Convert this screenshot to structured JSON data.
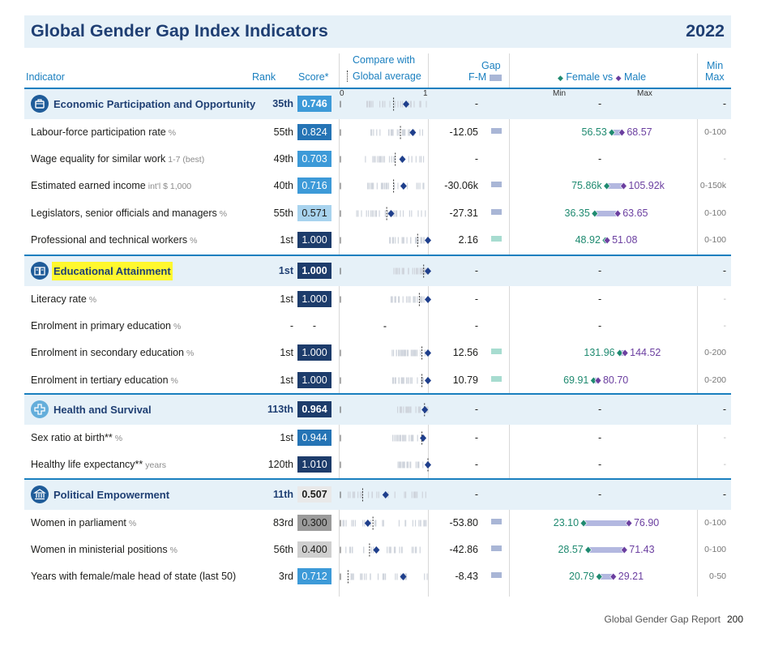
{
  "title": "Global Gender Gap Index Indicators",
  "year": "2022",
  "header": {
    "indicator": "Indicator",
    "rank": "Rank",
    "score": "Score*",
    "compare_line1": "Compare with",
    "compare_line2": "Global average",
    "gap_line1": "Gap",
    "gap_line2": "F-M",
    "female_vs_male_female": "Female",
    "female_vs_male_vs": "vs",
    "female_vs_male_male": "Male",
    "minmax_line1": "Min",
    "minmax_line2": "Max",
    "axis_0": "0",
    "axis_1": "1",
    "axis_min": "Min",
    "axis_max": "Max"
  },
  "colors": {
    "accent": "#1a7fbf",
    "title": "#1f3f73",
    "band": "#e6f1f8",
    "female": "#1f8a70",
    "male": "#6b3fa0",
    "highlight": "#fff82e"
  },
  "rows": [
    {
      "kind": "cat",
      "icon": "briefcase-icon",
      "label": "Economic Participation and Opportunity",
      "unit": "",
      "rank": "35th",
      "score": "0.746",
      "score_v": 0.746,
      "avg": 0.6,
      "gap": "-",
      "gap_bar": null,
      "female": "-",
      "male": "",
      "f_v": null,
      "m_v": null,
      "minmax": "-",
      "highlight": false
    },
    {
      "kind": "ind",
      "label": "Labour-force participation rate",
      "unit": "%",
      "rank": "55th",
      "score": "0.824",
      "score_v": 0.824,
      "avg": 0.68,
      "gap": "-12.05",
      "gap_bar": "neg",
      "female": "56.53",
      "male": "68.57",
      "f_v": 0.5653,
      "m_v": 0.6857,
      "minmax": "0-100"
    },
    {
      "kind": "ind",
      "label": "Wage equality for similar work",
      "unit": "1-7 (best)",
      "rank": "49th",
      "score": "0.703",
      "score_v": 0.703,
      "avg": 0.62,
      "gap": "-",
      "gap_bar": null,
      "female": "-",
      "male": "",
      "f_v": null,
      "m_v": null,
      "minmax": "-"
    },
    {
      "kind": "ind",
      "label": "Estimated earned income",
      "unit": "int'l $ 1,000",
      "rank": "40th",
      "score": "0.716",
      "score_v": 0.716,
      "avg": 0.6,
      "gap": "-30.06k",
      "gap_bar": "neg",
      "female": "75.86k",
      "male": "105.92k",
      "f_v": 0.5057,
      "m_v": 0.7061,
      "minmax": "0-150k"
    },
    {
      "kind": "ind",
      "label": "Legislators, senior officials and managers",
      "unit": "%",
      "rank": "55th",
      "score": "0.571",
      "score_v": 0.571,
      "avg": 0.52,
      "gap": "-27.31",
      "gap_bar": "neg",
      "female": "36.35",
      "male": "63.65",
      "f_v": 0.3635,
      "m_v": 0.6365,
      "minmax": "0-100"
    },
    {
      "kind": "ind",
      "label": "Professional and technical workers",
      "unit": "%",
      "rank": "1st",
      "score": "1.000",
      "score_v": 1.0,
      "avg": 0.88,
      "gap": "2.16",
      "gap_bar": "pos",
      "female": "48.92",
      "male": "51.08",
      "f_v": 0.4892,
      "m_v": 0.5108,
      "minmax": "0-100"
    },
    {
      "kind": "cat",
      "icon": "book-icon",
      "label": "Educational Attainment",
      "unit": "",
      "rank": "1st",
      "score": "1.000",
      "score_v": 1.0,
      "avg": 0.95,
      "gap": "-",
      "gap_bar": null,
      "female": "-",
      "male": "",
      "f_v": null,
      "m_v": null,
      "minmax": "-",
      "highlight": true
    },
    {
      "kind": "ind",
      "label": "Literacy rate",
      "unit": "%",
      "rank": "1st",
      "score": "1.000",
      "score_v": 1.0,
      "avg": 0.9,
      "gap": "-",
      "gap_bar": null,
      "female": "-",
      "male": "",
      "f_v": null,
      "m_v": null,
      "minmax": "-"
    },
    {
      "kind": "ind",
      "label": "Enrolment in primary education",
      "unit": "%",
      "rank": "-",
      "score": "-",
      "score_v": null,
      "avg": null,
      "gap": "-",
      "gap_bar": null,
      "female": "-",
      "male": "",
      "f_v": null,
      "m_v": null,
      "minmax": "-"
    },
    {
      "kind": "ind",
      "label": "Enrolment in secondary education",
      "unit": "%",
      "rank": "1st",
      "score": "1.000",
      "score_v": 1.0,
      "avg": 0.93,
      "gap": "12.56",
      "gap_bar": "pos",
      "female": "131.96",
      "male": "144.52",
      "f_v": 0.6598,
      "m_v": 0.7226,
      "minmax": "0-200"
    },
    {
      "kind": "ind",
      "label": "Enrolment in tertiary education",
      "unit": "%",
      "rank": "1st",
      "score": "1.000",
      "score_v": 1.0,
      "avg": 0.93,
      "gap": "10.79",
      "gap_bar": "pos",
      "female": "69.91",
      "male": "80.70",
      "f_v": 0.3496,
      "m_v": 0.4035,
      "minmax": "0-200"
    },
    {
      "kind": "cat",
      "icon": "health-cross-icon",
      "label": "Health and Survival",
      "unit": "",
      "rank": "113th",
      "score": "0.964",
      "score_v": 0.964,
      "avg": 0.96,
      "gap": "-",
      "gap_bar": null,
      "female": "-",
      "male": "",
      "f_v": null,
      "m_v": null,
      "minmax": "-",
      "highlight": false
    },
    {
      "kind": "ind",
      "label": "Sex ratio at birth**",
      "unit": "%",
      "rank": "1st",
      "score": "0.944",
      "score_v": 0.944,
      "avg": 0.93,
      "gap": "-",
      "gap_bar": null,
      "female": "-",
      "male": "",
      "f_v": null,
      "m_v": null,
      "minmax": "-"
    },
    {
      "kind": "ind",
      "label": "Healthy life expectancy**",
      "unit": "years",
      "rank": "120th",
      "score": "1.010",
      "score_v": 1.0,
      "avg": 1.0,
      "gap": "-",
      "gap_bar": null,
      "female": "-",
      "male": "",
      "f_v": null,
      "m_v": null,
      "minmax": "-"
    },
    {
      "kind": "cat",
      "icon": "capitol-icon",
      "label": "Political Empowerment",
      "unit": "",
      "rank": "11th",
      "score": "0.507",
      "score_v": 0.507,
      "avg": 0.24,
      "gap": "-",
      "gap_bar": null,
      "female": "-",
      "male": "",
      "f_v": null,
      "m_v": null,
      "minmax": "-",
      "highlight": false
    },
    {
      "kind": "ind",
      "label": "Women in parliament",
      "unit": "%",
      "rank": "83rd",
      "score": "0.300",
      "score_v": 0.3,
      "avg": 0.36,
      "gap": "-53.80",
      "gap_bar": "neg",
      "female": "23.10",
      "male": "76.90",
      "f_v": 0.231,
      "m_v": 0.769,
      "minmax": "0-100"
    },
    {
      "kind": "ind",
      "label": "Women in ministerial positions",
      "unit": "%",
      "rank": "56th",
      "score": "0.400",
      "score_v": 0.4,
      "avg": 0.32,
      "gap": "-42.86",
      "gap_bar": "neg",
      "female": "28.57",
      "male": "71.43",
      "f_v": 0.2857,
      "m_v": 0.7143,
      "minmax": "0-100"
    },
    {
      "kind": "ind",
      "label": "Years with female/male head of state (last 50)",
      "unit": "",
      "rank": "3rd",
      "score": "0.712",
      "score_v": 0.712,
      "avg": 0.07,
      "gap": "-8.43",
      "gap_bar": "neg",
      "female": "20.79",
      "male": "29.21",
      "f_v": 0.4158,
      "m_v": 0.5842,
      "minmax": "0-50"
    }
  ],
  "footer": {
    "report": "Global Gender Gap Report",
    "page": "200"
  }
}
